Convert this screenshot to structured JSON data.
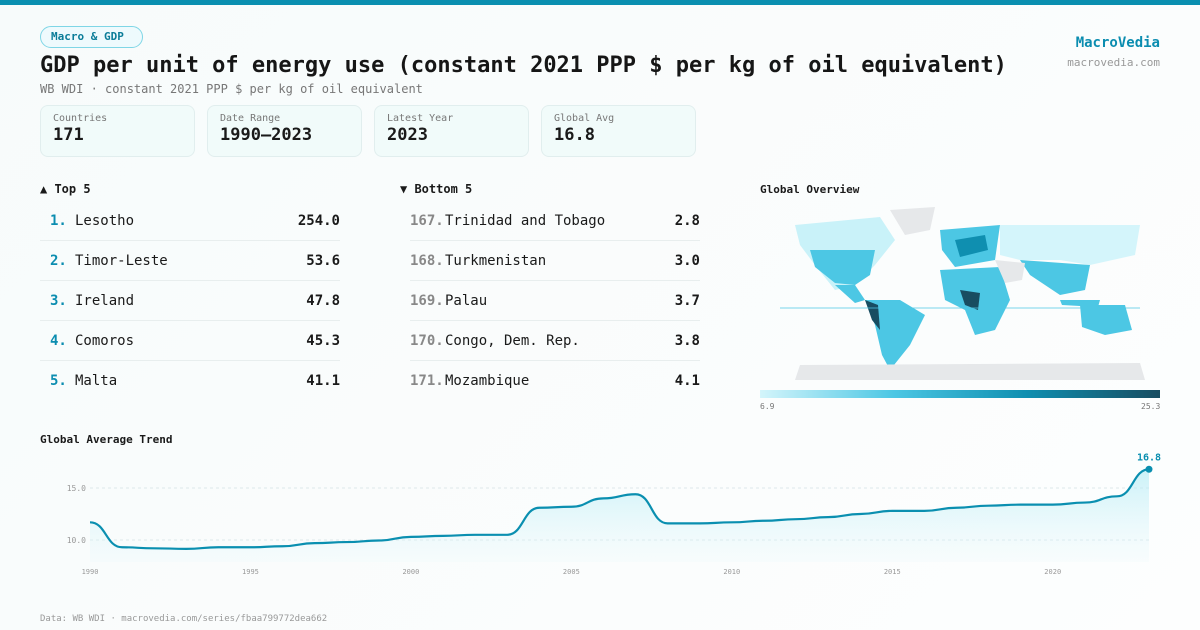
{
  "header": {
    "tag": "Macro & GDP",
    "title": "GDP per unit of energy use (constant 2021 PPP $ per kg of oil equivalent)",
    "subtitle": "WB WDI · constant 2021 PPP $ per kg of oil equivalent",
    "brand": "MacroVedia",
    "brand_url": "macrovedia.com"
  },
  "stats": [
    {
      "label": "Countries",
      "value": "171"
    },
    {
      "label": "Date Range",
      "value": "1990–2023"
    },
    {
      "label": "Latest Year",
      "value": "2023"
    },
    {
      "label": "Global Avg",
      "value": "16.8"
    }
  ],
  "top5": {
    "title": "▲ Top 5",
    "items": [
      {
        "rank": "1.",
        "name": "Lesotho",
        "value": "254.0"
      },
      {
        "rank": "2.",
        "name": "Timor-Leste",
        "value": "53.6"
      },
      {
        "rank": "3.",
        "name": "Ireland",
        "value": "47.8"
      },
      {
        "rank": "4.",
        "name": "Comoros",
        "value": "45.3"
      },
      {
        "rank": "5.",
        "name": "Malta",
        "value": "41.1"
      }
    ]
  },
  "bottom5": {
    "title": "▼ Bottom 5",
    "items": [
      {
        "rank": "167.",
        "name": "Trinidad and Tobago",
        "value": "2.8"
      },
      {
        "rank": "168.",
        "name": "Turkmenistan",
        "value": "3.0"
      },
      {
        "rank": "169.",
        "name": "Palau",
        "value": "3.7"
      },
      {
        "rank": "170.",
        "name": "Congo, Dem. Rep.",
        "value": "3.8"
      },
      {
        "rank": "171.",
        "name": "Mozambique",
        "value": "4.1"
      }
    ]
  },
  "map": {
    "title": "Global Overview",
    "scale_min": "6.9",
    "scale_max": "25.3",
    "colors": [
      "#d4f5fb",
      "#4cc7e4",
      "#0f8fb0",
      "#184d61"
    ]
  },
  "chart_data": {
    "type": "area",
    "title": "Global Average Trend",
    "x": [
      1990,
      1991,
      1992,
      1993,
      1994,
      1995,
      1996,
      1997,
      1998,
      1999,
      2000,
      2001,
      2002,
      2003,
      2004,
      2005,
      2006,
      2007,
      2008,
      2009,
      2010,
      2011,
      2012,
      2013,
      2014,
      2015,
      2016,
      2017,
      2018,
      2019,
      2020,
      2021,
      2022,
      2023
    ],
    "values": [
      11.7,
      9.3,
      9.2,
      9.15,
      9.3,
      9.3,
      9.4,
      9.7,
      9.8,
      9.95,
      10.3,
      10.4,
      10.5,
      10.5,
      13.1,
      13.2,
      14.0,
      14.4,
      11.6,
      11.6,
      11.7,
      11.85,
      12.0,
      12.2,
      12.5,
      12.8,
      12.8,
      13.1,
      13.3,
      13.4,
      13.4,
      13.6,
      14.2,
      16.8
    ],
    "xticks": [
      "1990",
      "1995",
      "2000",
      "2005",
      "2010",
      "2015",
      "2020"
    ],
    "yticks": [
      "10.0",
      "15.0"
    ],
    "last_label": "16.8",
    "color": "#0a8fb0",
    "grid": true
  },
  "footer": "Data: WB WDI · macrovedia.com/series/fbaa799772dea662"
}
